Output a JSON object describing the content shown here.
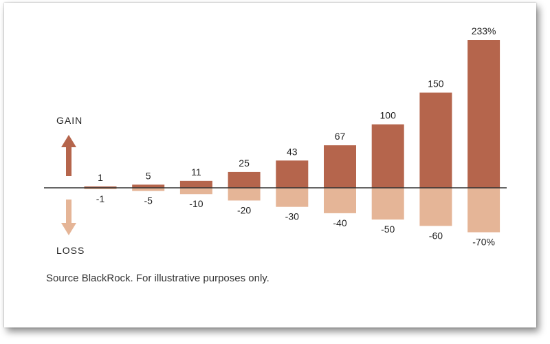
{
  "chart_data": {
    "type": "bar",
    "gain_label": "GAIN",
    "loss_label": "LOSS",
    "series": [
      {
        "values": [
          1,
          5,
          11,
          25,
          43,
          67,
          100,
          150,
          233
        ],
        "labels": [
          "1",
          "5",
          "11",
          "25",
          "43",
          "67",
          "100",
          "150",
          "233%"
        ],
        "color": "#b5654c"
      },
      {
        "values": [
          -1,
          -5,
          -10,
          -20,
          -30,
          -40,
          -50,
          -60,
          -70
        ],
        "labels": [
          "-1",
          "-5",
          "-10",
          "-20",
          "-30",
          "-40",
          "-50",
          "-60",
          "-70%"
        ],
        "color": "#e5b597"
      }
    ],
    "ylim": [
      -70,
      233
    ],
    "baseline_color": "#333333",
    "grid": false,
    "legend": "none"
  },
  "source_text": "Source BlackRock. For illustrative purposes only."
}
